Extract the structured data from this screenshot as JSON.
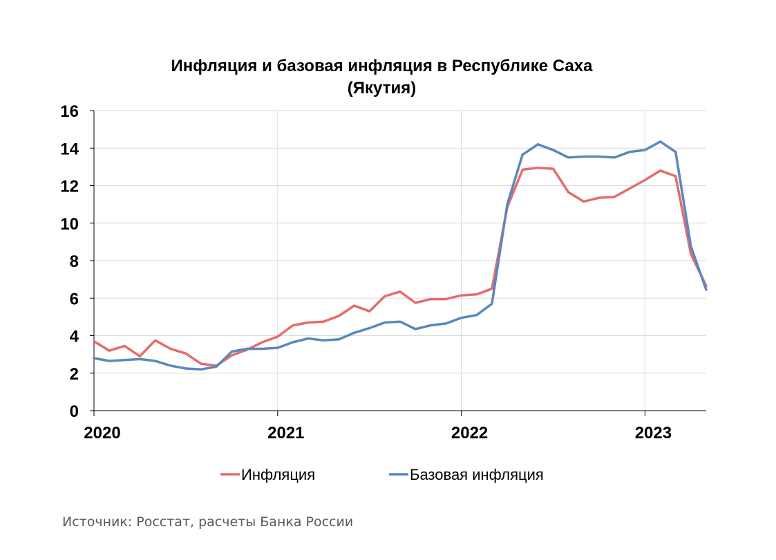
{
  "chart_data": {
    "type": "line",
    "title": "Инфляция и базовая инфляция в Республике Саха",
    "subtitle": "(Якутия)",
    "xlabel": "",
    "ylabel": "",
    "x_start": "2020-01",
    "x_ticks": [
      {
        "label": "2020",
        "month": 0
      },
      {
        "label": "2021",
        "month": 12
      },
      {
        "label": "2022",
        "month": 24
      },
      {
        "label": "2023",
        "month": 36
      }
    ],
    "xlim_months": [
      0,
      40
    ],
    "ylim": [
      0,
      16
    ],
    "y_ticks": [
      0,
      2,
      4,
      6,
      8,
      10,
      12,
      14,
      16
    ],
    "grid": true,
    "legend_position": "bottom",
    "series": [
      {
        "name": "Инфляция",
        "color": "#e46c6c",
        "values": [
          3.7,
          3.2,
          3.45,
          2.9,
          3.75,
          3.3,
          3.05,
          2.5,
          2.4,
          2.95,
          3.25,
          3.65,
          3.95,
          4.55,
          4.7,
          4.75,
          5.05,
          5.6,
          5.3,
          6.1,
          6.35,
          5.75,
          5.95,
          5.95,
          6.15,
          6.2,
          6.5,
          10.85,
          12.85,
          12.95,
          12.9,
          11.65,
          11.15,
          11.35,
          11.4,
          11.85,
          12.3,
          12.8,
          12.5,
          8.35,
          6.65
        ]
      },
      {
        "name": "Базовая инфляция",
        "color": "#5b87bd",
        "values": [
          2.8,
          2.65,
          2.7,
          2.75,
          2.65,
          2.4,
          2.25,
          2.2,
          2.35,
          3.15,
          3.3,
          3.3,
          3.35,
          3.65,
          3.85,
          3.75,
          3.8,
          4.15,
          4.4,
          4.7,
          4.75,
          4.35,
          4.55,
          4.65,
          4.95,
          5.1,
          5.7,
          11.0,
          13.65,
          14.2,
          13.9,
          13.5,
          13.55,
          13.55,
          13.5,
          13.8,
          13.9,
          14.35,
          13.8,
          8.75,
          6.45
        ]
      }
    ]
  },
  "footer": {
    "source": "Источник: Росстат, расчеты Банка России"
  }
}
